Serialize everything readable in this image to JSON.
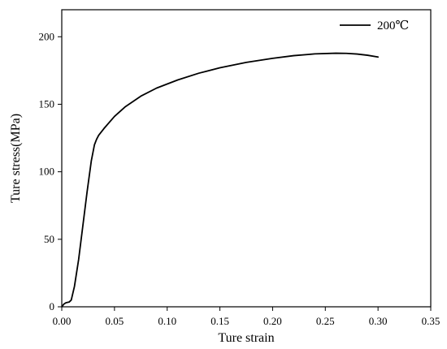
{
  "chart_data": {
    "type": "line",
    "title": "",
    "xlabel": "Ture strain",
    "ylabel": "Ture stress(MPa)",
    "xlim": [
      0.0,
      0.35
    ],
    "ylim": [
      0,
      220
    ],
    "xticks": [
      0.0,
      0.05,
      0.1,
      0.15,
      0.2,
      0.25,
      0.3,
      0.35
    ],
    "xtick_labels": [
      "0.00",
      "0.05",
      "0.10",
      "0.15",
      "0.20",
      "0.25",
      "0.30",
      "0.35"
    ],
    "yticks": [
      0,
      50,
      100,
      150,
      200
    ],
    "ytick_labels": [
      "0",
      "50",
      "100",
      "150",
      "200"
    ],
    "grid": false,
    "legend": "top-right",
    "series": [
      {
        "name": "200℃",
        "color": "#000000",
        "x": [
          0.0,
          0.002,
          0.004,
          0.007,
          0.009,
          0.012,
          0.016,
          0.02,
          0.024,
          0.028,
          0.031,
          0.033,
          0.035,
          0.04,
          0.05,
          0.06,
          0.075,
          0.09,
          0.11,
          0.13,
          0.15,
          0.175,
          0.2,
          0.22,
          0.24,
          0.26,
          0.27,
          0.28,
          0.29,
          0.3
        ],
        "y": [
          0,
          2,
          3,
          3.5,
          5,
          15,
          35,
          60,
          85,
          108,
          120,
          124,
          127,
          132,
          141,
          148,
          156,
          162,
          168,
          173,
          177,
          181,
          184,
          186,
          187.3,
          187.8,
          187.7,
          187.2,
          186.3,
          185
        ]
      }
    ]
  }
}
